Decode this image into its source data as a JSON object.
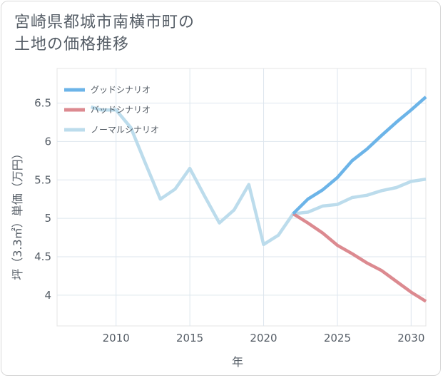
{
  "title_lines": [
    "宮崎県都城市南横市町の",
    "土地の価格推移"
  ],
  "chart_data": {
    "type": "line",
    "title": "宮崎県都城市南横市町の土地の価格推移",
    "xlabel": "年",
    "ylabel": "坪（3.3㎡）単価（万円）",
    "xlim": [
      2006,
      2031
    ],
    "ylim": [
      3.6,
      6.95
    ],
    "xticks": [
      2010,
      2015,
      2020,
      2025,
      2030
    ],
    "yticks": [
      4,
      4.5,
      5,
      5.5,
      6,
      6.5
    ],
    "xtick_labels": [
      "2010",
      "2015",
      "2020",
      "2025",
      "2030"
    ],
    "ytick_labels": [
      "4",
      "4.5",
      "5",
      "5.5",
      "6",
      "6.5"
    ],
    "grid": true,
    "legend": "top-left",
    "series": [
      {
        "name": "グッドシナリオ",
        "color": "#6cb4e8",
        "x": [
          2022,
          2023,
          2024,
          2025,
          2026,
          2027,
          2028,
          2029,
          2030,
          2031
        ],
        "y": [
          5.06,
          5.25,
          5.37,
          5.53,
          5.75,
          5.9,
          6.08,
          6.25,
          6.41,
          6.58
        ]
      },
      {
        "name": "バッドシナリオ",
        "color": "#dc8a90",
        "x": [
          2022,
          2023,
          2024,
          2025,
          2026,
          2027,
          2028,
          2029,
          2030,
          2031
        ],
        "y": [
          5.06,
          4.94,
          4.81,
          4.65,
          4.54,
          4.42,
          4.32,
          4.18,
          4.04,
          3.92
        ]
      },
      {
        "name": "ノーマルシナリオ",
        "color": "#bcdcec",
        "x": [
          2008.3,
          2009,
          2010,
          2011,
          2012,
          2013,
          2014,
          2015,
          2016,
          2017,
          2018,
          2019,
          2020,
          2021,
          2022,
          2023,
          2024,
          2025,
          2026,
          2027,
          2028,
          2029,
          2030,
          2031
        ],
        "y": [
          6.45,
          6.41,
          6.41,
          6.18,
          5.71,
          5.25,
          5.38,
          5.65,
          5.29,
          4.94,
          5.11,
          5.44,
          4.66,
          4.78,
          5.06,
          5.08,
          5.16,
          5.18,
          5.27,
          5.3,
          5.36,
          5.4,
          5.48,
          5.51
        ]
      }
    ]
  }
}
